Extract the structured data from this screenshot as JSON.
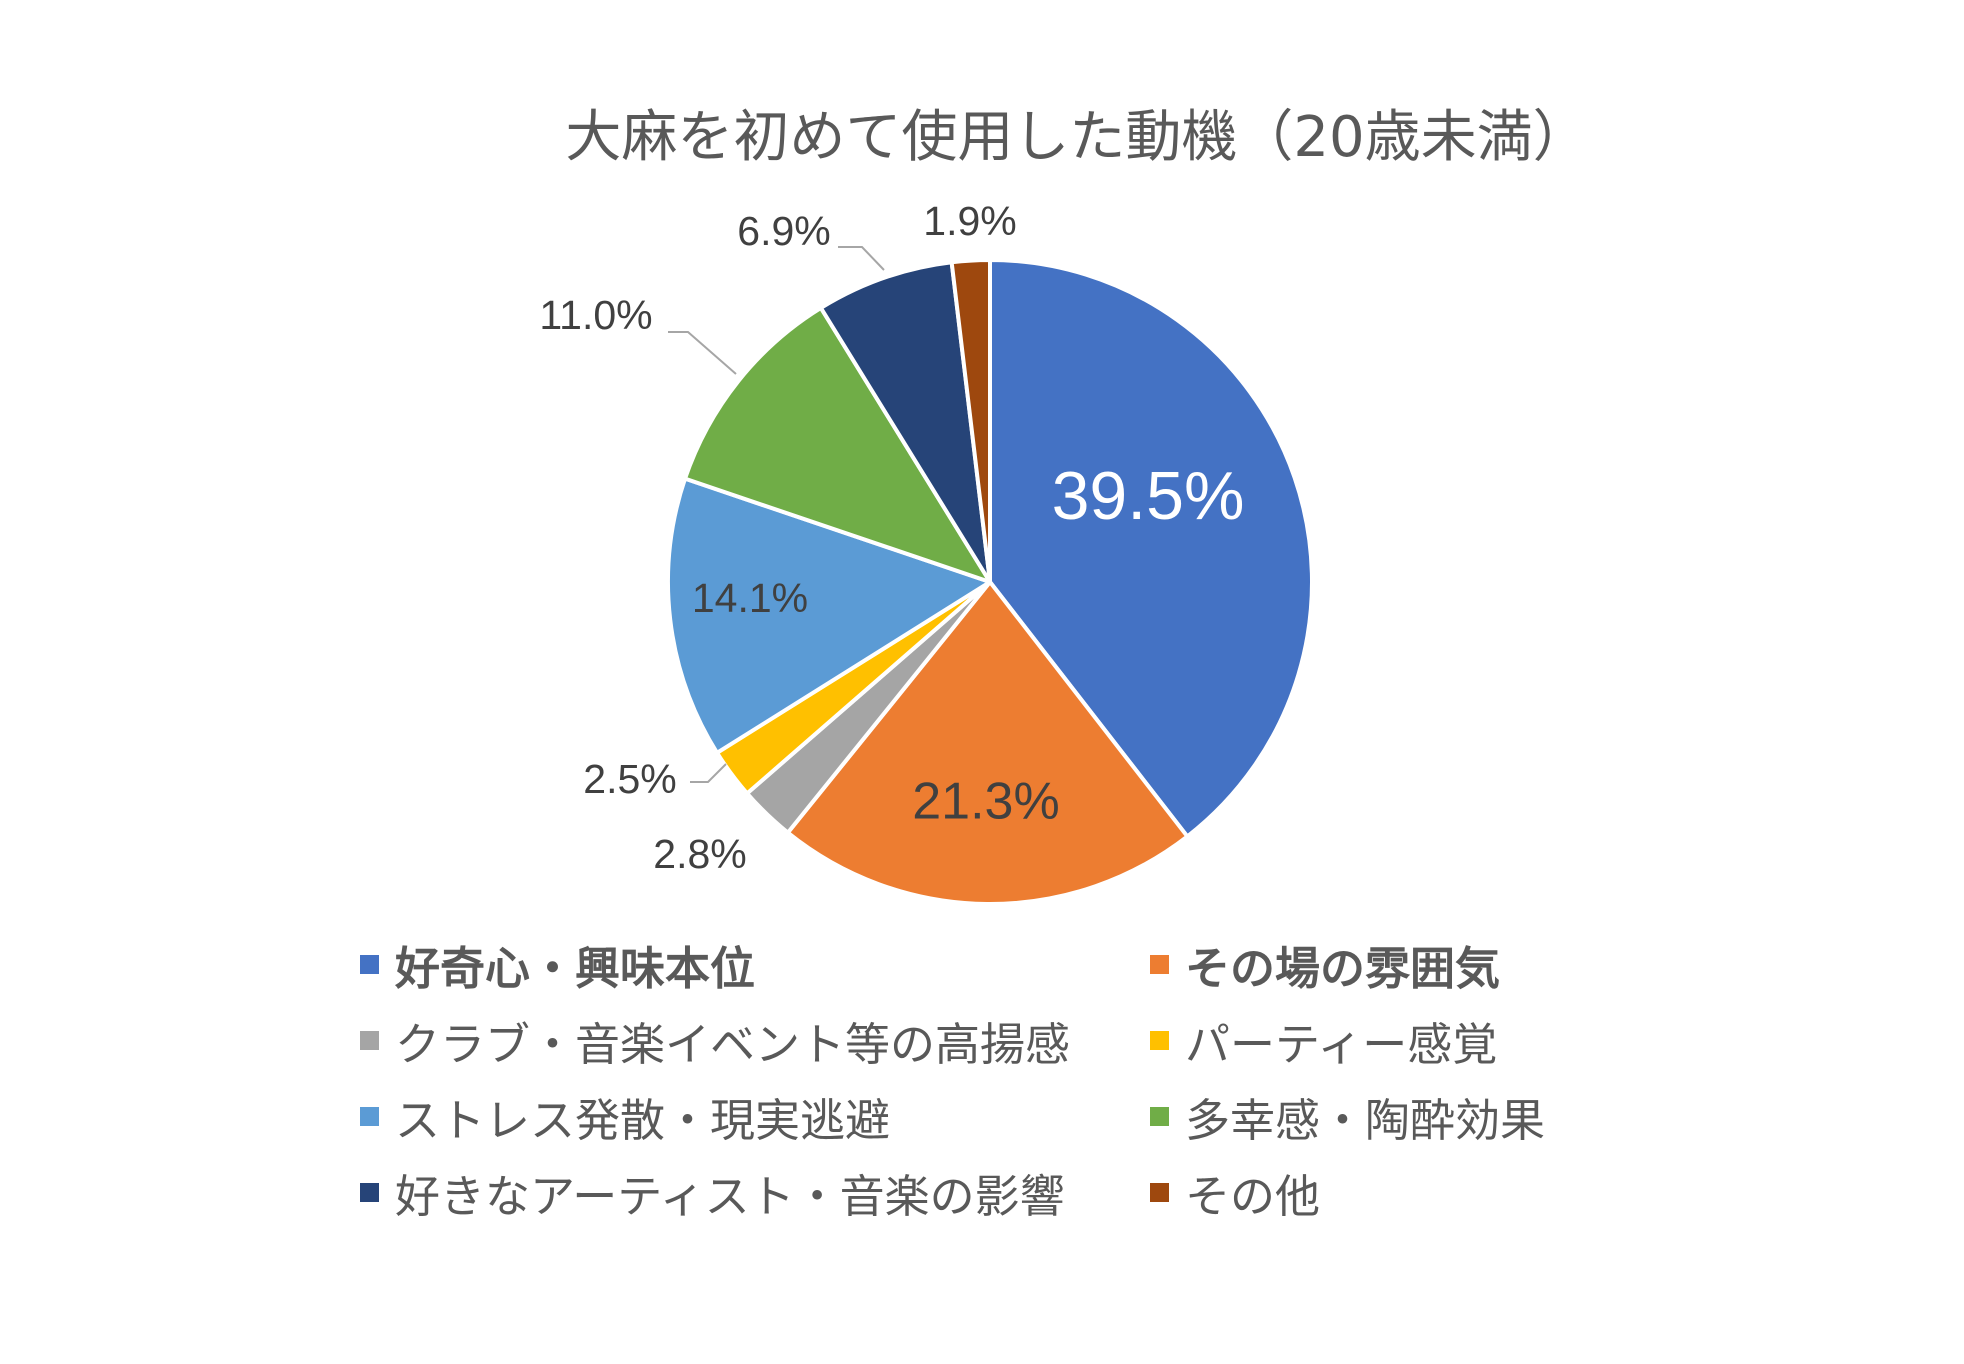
{
  "chart_data": {
    "type": "pie",
    "title": "大麻を初めて使用した動機（20歳未満）",
    "slices": [
      {
        "label": "好奇心・興味本位",
        "value": 39.5,
        "display": "39.5%",
        "color": "#4472C4",
        "bold": true
      },
      {
        "label": "その場の雰囲気",
        "value": 21.3,
        "display": "21.3%",
        "color": "#ED7D31",
        "bold": true
      },
      {
        "label": "クラブ・音楽イベント等の高揚感",
        "value": 2.8,
        "display": "2.8%",
        "color": "#A5A5A5",
        "bold": false
      },
      {
        "label": "パーティー感覚",
        "value": 2.5,
        "display": "2.5%",
        "color": "#FFC000",
        "bold": false
      },
      {
        "label": "ストレス発散・現実逃避",
        "value": 14.1,
        "display": "14.1%",
        "color": "#5B9BD5",
        "bold": false
      },
      {
        "label": "多幸感・陶酔効果",
        "value": 11.0,
        "display": "11.0%",
        "color": "#70AD47",
        "bold": false
      },
      {
        "label": "好きなアーティスト・音楽の影響",
        "value": 6.9,
        "display": "6.9%",
        "color": "#264478",
        "bold": false
      },
      {
        "label": "その他",
        "value": 1.9,
        "display": "1.9%",
        "color": "#9E480E",
        "bold": false
      }
    ],
    "legend_position": "bottom"
  }
}
